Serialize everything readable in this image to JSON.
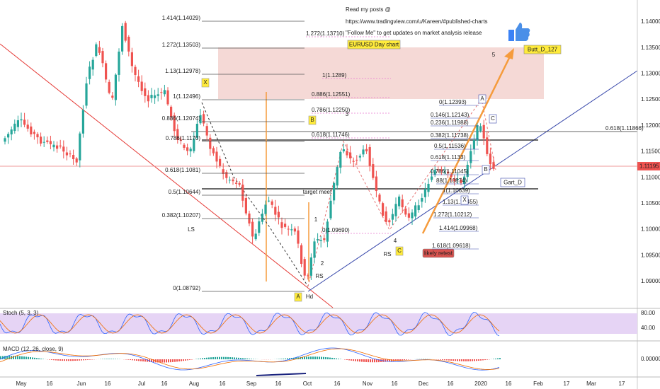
{
  "header": [
    "Read my posts @",
    "https://www.tradingview.com/u/Kareen/#published-charts",
    "\"Follow Me\" to get updates on market analysis release"
  ],
  "badges": [
    "EURUSD Day chart",
    "Butt_D_127",
    "Gart_D",
    "likely retest"
  ],
  "fib_left": [
    "1.414(1.14029)",
    "1.272(1.13503)",
    "1.13(1.12978)",
    "1(1.12496)",
    "0.886(1.12074)",
    "0.786(1.1170)",
    "0.618(1.1081)",
    "0.5(1.10644)",
    "0.382(1.10207)",
    "0(1.08792)"
  ],
  "fib_pink": [
    "1.272(1.13710)",
    "1(1.1289)",
    "0.886(1.12551)",
    "0.786(1.12250)",
    "0.618(1.11746)",
    "0(1.09690)"
  ],
  "fib_right": [
    "0(1.12393)",
    "0.146(1.12143)",
    "0.236(1.11988)",
    "0.382(1.11738)",
    "0.5(1.11536)",
    "0.618(1.1133)",
    "0.786(1.11045)",
    "88(1.10874)",
    "1(1.10639)",
    "1.13(1.10455)",
    "1.272(1.10212)",
    "1.414(1.09968)",
    "1.618(1.09618)"
  ],
  "fib_far": "0.618(1.11866)",
  "labels": [
    "X",
    "B",
    "A",
    "C",
    "A",
    "C",
    "B",
    "X",
    "LS",
    "Hd",
    "RS",
    "RS",
    "target meet",
    "1",
    "2",
    "3",
    "4",
    "5"
  ],
  "price_axis": [
    "1.14000",
    "1.13500",
    "1.13000",
    "1.12500",
    "1.12000",
    "1.11500",
    "1.11000",
    "1.10500",
    "1.10000",
    "1.09500",
    "1.09000"
  ],
  "current_price": "1.11195",
  "time_axis": [
    "May",
    "16",
    "Jun",
    "16",
    "Jul",
    "16",
    "Aug",
    "16",
    "Sep",
    "16",
    "Oct",
    "16",
    "Nov",
    "16",
    "Dec",
    "16",
    "2020",
    "16",
    "Feb",
    "17",
    "Mar",
    "17"
  ],
  "stoch": {
    "title": "Stoch (5, 3, 3)",
    "ticks": [
      "80.00",
      "40.00"
    ]
  },
  "macd": {
    "title": "MACD (12, 26, close, 9)",
    "ticks": [
      "0.00000"
    ]
  }
}
